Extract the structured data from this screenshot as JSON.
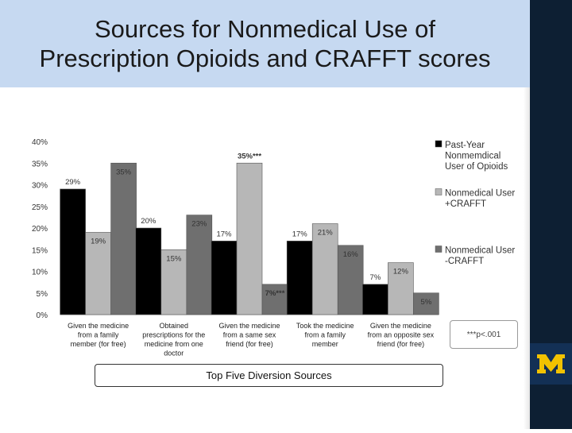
{
  "slide": {
    "title_line1": "Sources for Nonmedical Use of",
    "title_line2": "Prescription Opioids and CRAFFT scores",
    "caption": "Top Five Diversion Sources",
    "logo_text": "M",
    "colors": {
      "title_bg": "#c6d9f1",
      "right_bar": "#0d1f33",
      "logo_bg": "#133055",
      "logo_fg": "#f2c200"
    }
  },
  "chart_data": {
    "type": "bar",
    "categories": [
      [
        "Given the medicine",
        "from a family",
        "member (for free)"
      ],
      [
        "Obtained",
        "prescriptions for the",
        "medicine from one",
        "doctor"
      ],
      [
        "Given the medicine",
        "from a same sex",
        "friend (for free)"
      ],
      [
        "Took the medicine",
        "from a family",
        "member"
      ],
      [
        "Given the medicine",
        "from an opposite sex",
        "friend (for free)"
      ]
    ],
    "ylim": [
      0,
      40
    ],
    "yticks": [
      0,
      5,
      10,
      15,
      20,
      25,
      30,
      35,
      40
    ],
    "ytick_labels": [
      "0%",
      "5%",
      "10%",
      "15%",
      "20%",
      "25%",
      "30%",
      "35%",
      "40%"
    ],
    "series": [
      {
        "name": "Past-Year Nonmemdical User of Opioids",
        "legend_lines": [
          "Past-Year",
          "Nonmemdical",
          "User of Opioids"
        ],
        "color": "#000000",
        "values": [
          29,
          20,
          17,
          17,
          7
        ],
        "labels": [
          "29%",
          "20%",
          "17%",
          "17%",
          "7%"
        ]
      },
      {
        "name": "Nonmedical User +CRAFFT",
        "legend_lines": [
          "Nonmedical User",
          "+CRAFFT"
        ],
        "color": "#b7b7b7",
        "values": [
          19,
          15,
          35,
          21,
          12
        ],
        "labels": [
          "19%",
          "15%",
          "35%***",
          "21%",
          "12%"
        ]
      },
      {
        "name": "Nonmedical User -CRAFFT",
        "legend_lines": [
          "Nonmedical User",
          "-CRAFFT"
        ],
        "color": "#6f6f6f",
        "values": [
          35,
          23,
          7,
          16,
          5
        ],
        "labels": [
          "35%",
          "23%",
          "7%***",
          "16%",
          "5%"
        ]
      }
    ],
    "footnote": "***p<.001",
    "legend_position": "right",
    "grid": false
  }
}
